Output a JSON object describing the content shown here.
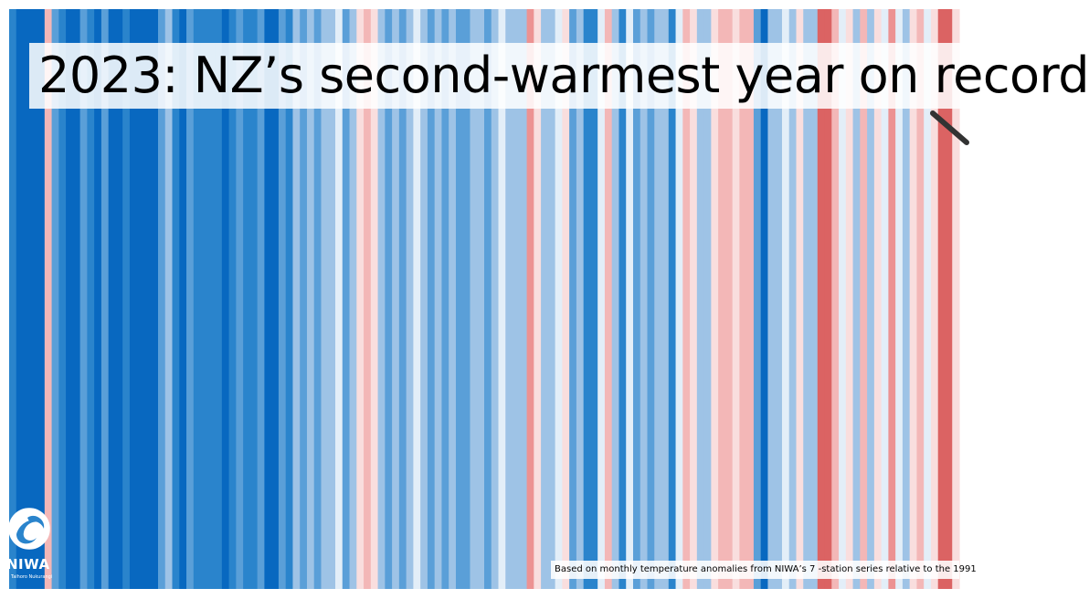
{
  "title": "2023: NZ’s second-warmest year on record",
  "footnote": "Based on monthly temperature anomalies from  NIWA’s 7 -station series relative to the 1991",
  "logo": {
    "name": "NIWA",
    "tagline": "Taihoro Nukurangi"
  },
  "chart_data": {
    "type": "heatmap",
    "description_kind": "warming stripes",
    "palette": {
      "-4": "#0868c0",
      "-3": "#2a84cc",
      "-2": "#5a9fd8",
      "-1": "#9ec3e6",
      "0": "#e3eef8",
      "1": "#f9dede",
      "2": "#f3b7b7",
      "3": "#ec9292",
      "4": "#db6363"
    },
    "values": [
      -3,
      -4,
      -4,
      -4,
      -4,
      2,
      -2,
      -3,
      -4,
      -4,
      -2,
      -3,
      -4,
      -2,
      -4,
      -4,
      -3,
      -4,
      -4,
      -4,
      -4,
      -2,
      -1,
      -3,
      -4,
      -2,
      -3,
      -3,
      -3,
      -3,
      -4,
      -3,
      -2,
      -3,
      -3,
      -2,
      -4,
      -4,
      -2,
      -3,
      -1,
      -2,
      -1,
      -2,
      -1,
      -1,
      0,
      -2,
      -1,
      1,
      2,
      1,
      -1,
      -2,
      -1,
      -2,
      -1,
      0,
      -1,
      -2,
      -1,
      -2,
      -1,
      -2,
      -2,
      -1,
      -1,
      -2,
      -1,
      0,
      -1,
      -1,
      -1,
      3,
      1,
      -1,
      -1,
      0,
      1,
      -2,
      -1,
      -3,
      -3,
      0,
      2,
      -1,
      -3,
      0,
      -2,
      -1,
      -2,
      -1,
      -1,
      -3,
      0,
      2,
      1,
      -1,
      -1,
      1,
      2,
      2,
      1,
      2,
      2,
      -2,
      -4,
      -1,
      -1,
      0,
      -1,
      1,
      -1,
      -1,
      4,
      4,
      2,
      0,
      1,
      -1,
      2,
      -1,
      1,
      0,
      3,
      0,
      -1,
      1,
      2,
      0,
      1,
      4,
      4,
      1
    ]
  }
}
